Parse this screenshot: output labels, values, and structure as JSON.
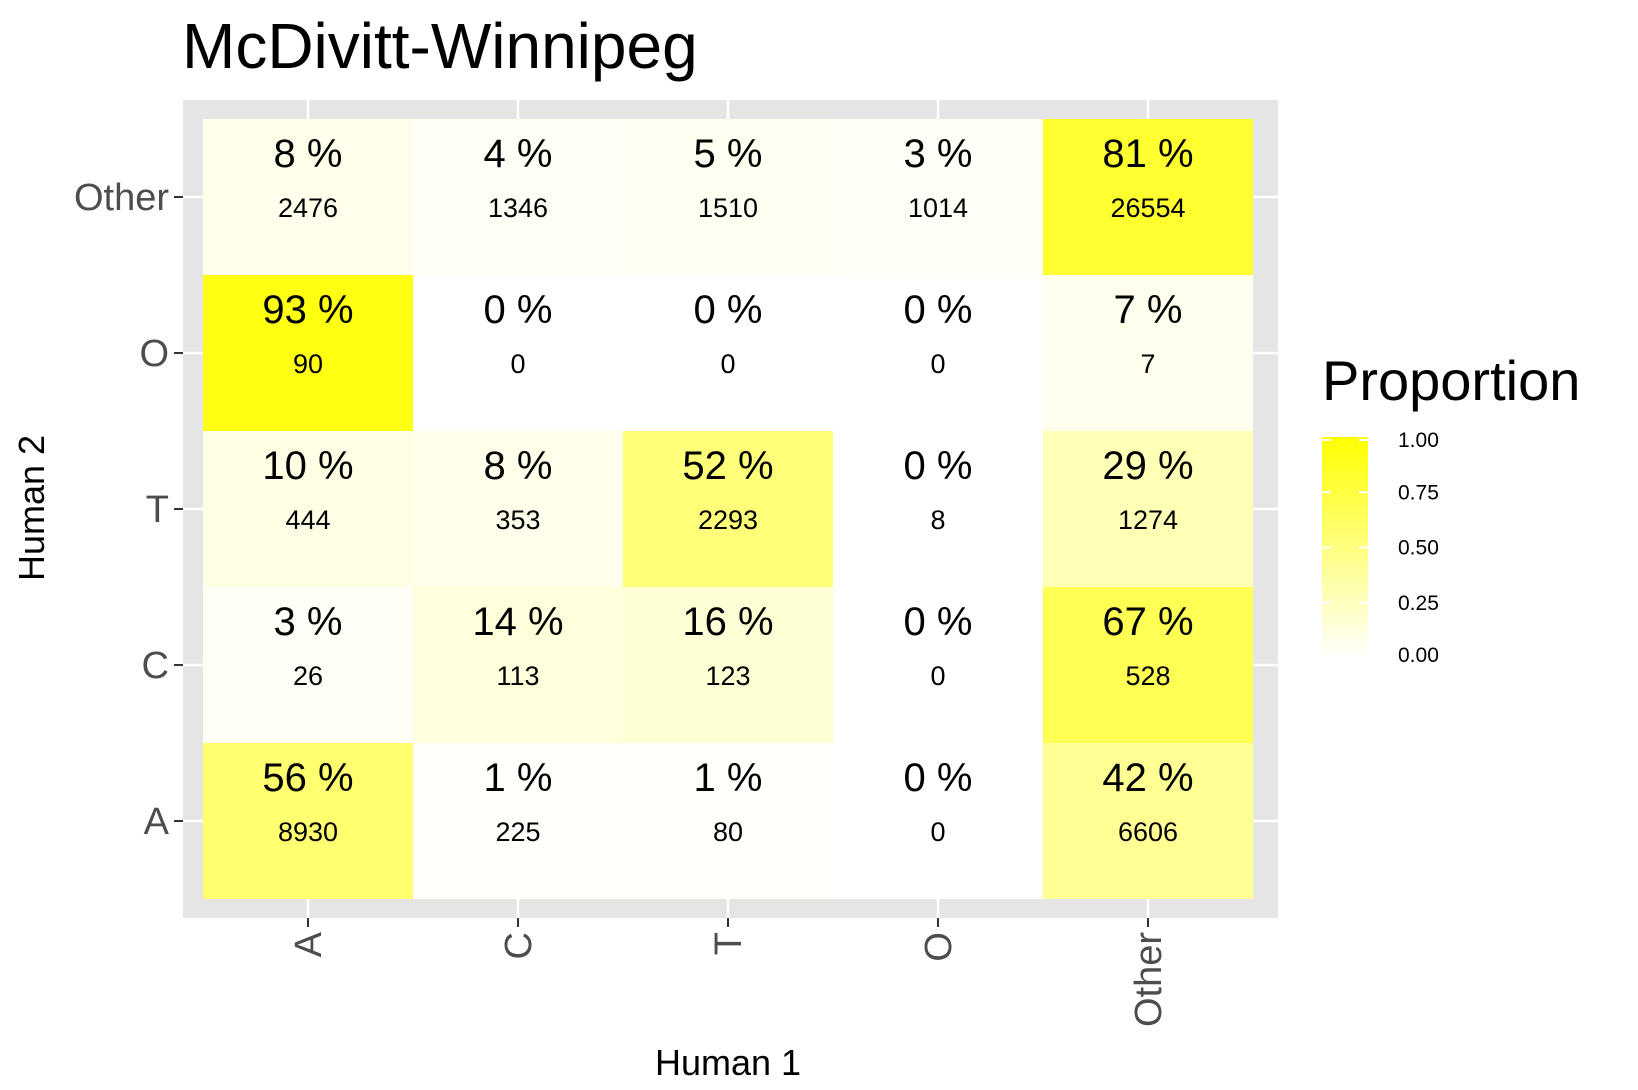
{
  "chart_data": {
    "type": "heatmap",
    "title": "McDivitt-Winnipeg",
    "xlabel": "Human 1",
    "ylabel": "Human 2",
    "x_categories": [
      "A",
      "C",
      "T",
      "O",
      "Other"
    ],
    "y_categories": [
      "A",
      "C",
      "T",
      "O",
      "Other"
    ],
    "cells": [
      {
        "x": "A",
        "y": "Other",
        "pct": "8 %",
        "count": "2476",
        "value": 0.08
      },
      {
        "x": "C",
        "y": "Other",
        "pct": "4 %",
        "count": "1346",
        "value": 0.04
      },
      {
        "x": "T",
        "y": "Other",
        "pct": "5 %",
        "count": "1510",
        "value": 0.05
      },
      {
        "x": "O",
        "y": "Other",
        "pct": "3 %",
        "count": "1014",
        "value": 0.03
      },
      {
        "x": "Other",
        "y": "Other",
        "pct": "81 %",
        "count": "26554",
        "value": 0.81
      },
      {
        "x": "A",
        "y": "O",
        "pct": "93 %",
        "count": "90",
        "value": 0.93
      },
      {
        "x": "C",
        "y": "O",
        "pct": "0 %",
        "count": "0",
        "value": 0.0
      },
      {
        "x": "T",
        "y": "O",
        "pct": "0 %",
        "count": "0",
        "value": 0.0
      },
      {
        "x": "O",
        "y": "O",
        "pct": "0 %",
        "count": "0",
        "value": 0.0
      },
      {
        "x": "Other",
        "y": "O",
        "pct": "7 %",
        "count": "7",
        "value": 0.07
      },
      {
        "x": "A",
        "y": "T",
        "pct": "10 %",
        "count": "444",
        "value": 0.1
      },
      {
        "x": "C",
        "y": "T",
        "pct": "8 %",
        "count": "353",
        "value": 0.08
      },
      {
        "x": "T",
        "y": "T",
        "pct": "52 %",
        "count": "2293",
        "value": 0.52
      },
      {
        "x": "O",
        "y": "T",
        "pct": "0 %",
        "count": "8",
        "value": 0.0
      },
      {
        "x": "Other",
        "y": "T",
        "pct": "29 %",
        "count": "1274",
        "value": 0.29
      },
      {
        "x": "A",
        "y": "C",
        "pct": "3 %",
        "count": "26",
        "value": 0.03
      },
      {
        "x": "C",
        "y": "C",
        "pct": "14 %",
        "count": "113",
        "value": 0.14
      },
      {
        "x": "T",
        "y": "C",
        "pct": "16 %",
        "count": "123",
        "value": 0.16
      },
      {
        "x": "O",
        "y": "C",
        "pct": "0 %",
        "count": "0",
        "value": 0.0
      },
      {
        "x": "Other",
        "y": "C",
        "pct": "67 %",
        "count": "528",
        "value": 0.67
      },
      {
        "x": "A",
        "y": "A",
        "pct": "56 %",
        "count": "8930",
        "value": 0.56
      },
      {
        "x": "C",
        "y": "A",
        "pct": "1 %",
        "count": "225",
        "value": 0.01
      },
      {
        "x": "T",
        "y": "A",
        "pct": "1 %",
        "count": "80",
        "value": 0.01
      },
      {
        "x": "O",
        "y": "A",
        "pct": "0 %",
        "count": "0",
        "value": 0.0
      },
      {
        "x": "Other",
        "y": "A",
        "pct": "42 %",
        "count": "6606",
        "value": 0.42
      }
    ],
    "color_scale": {
      "low": "#ffffff",
      "high": "#ffff00",
      "range": [
        0,
        1
      ]
    },
    "legend": {
      "title": "Proportion",
      "placement": "right",
      "ticks": [
        "0.00",
        "0.25",
        "0.50",
        "0.75",
        "1.00"
      ],
      "tick_values": [
        0,
        0.25,
        0.5,
        0.75,
        1.0
      ]
    },
    "panel_background": "#e5e5e5",
    "gridline_color": "#ffffff",
    "grid": true
  }
}
